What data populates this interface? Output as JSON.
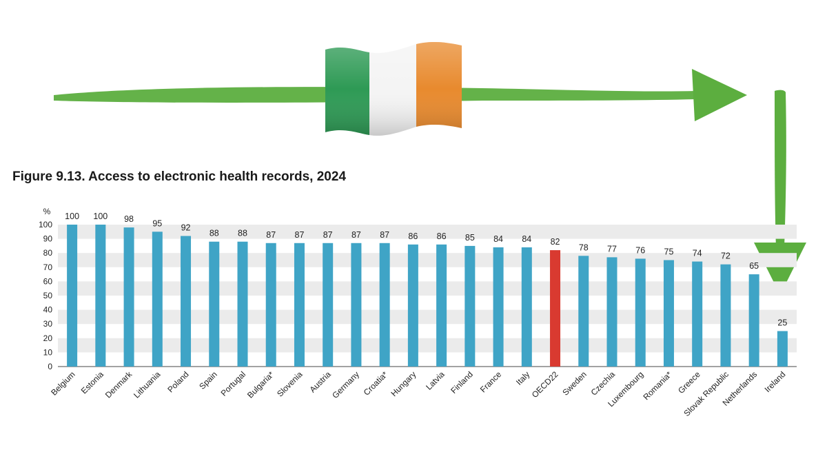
{
  "title": "Figure 9.13. Access to electronic health records, 2024",
  "colors": {
    "bar": "#3fa4c6",
    "highlight": "#d93a30",
    "band": "#ebebeb",
    "arrow": "#5cae3f",
    "flag_green": "#2e9a55",
    "flag_white": "#f4f4f4",
    "flag_orange": "#e88a2e"
  },
  "decorations": {
    "flag": "ireland-flag",
    "arrows": [
      "horizontal-arrow",
      "down-arrow"
    ]
  },
  "chart_data": {
    "type": "bar",
    "ylabel": "%",
    "ylim": [
      0,
      100
    ],
    "yticks": [
      0,
      10,
      20,
      30,
      40,
      50,
      60,
      70,
      80,
      90,
      100
    ],
    "grid": "alternating-bands",
    "highlight_category": "OECD22",
    "categories": [
      "Belgium",
      "Estonia",
      "Denmark",
      "Lithuania",
      "Poland",
      "Spain",
      "Portugal",
      "Bulgaria*",
      "Slovenia",
      "Austria",
      "Germany",
      "Croatia*",
      "Hungary",
      "Latvia",
      "Finland",
      "France",
      "Italy",
      "OECD22",
      "Sweden",
      "Czechia",
      "Luxembourg",
      "Romania*",
      "Greece",
      "Slovak Republic",
      "Netherlands",
      "Ireland"
    ],
    "values": [
      100,
      100,
      98,
      95,
      92,
      88,
      88,
      87,
      87,
      87,
      87,
      87,
      86,
      86,
      85,
      84,
      84,
      82,
      78,
      77,
      76,
      75,
      74,
      72,
      65,
      25
    ]
  }
}
